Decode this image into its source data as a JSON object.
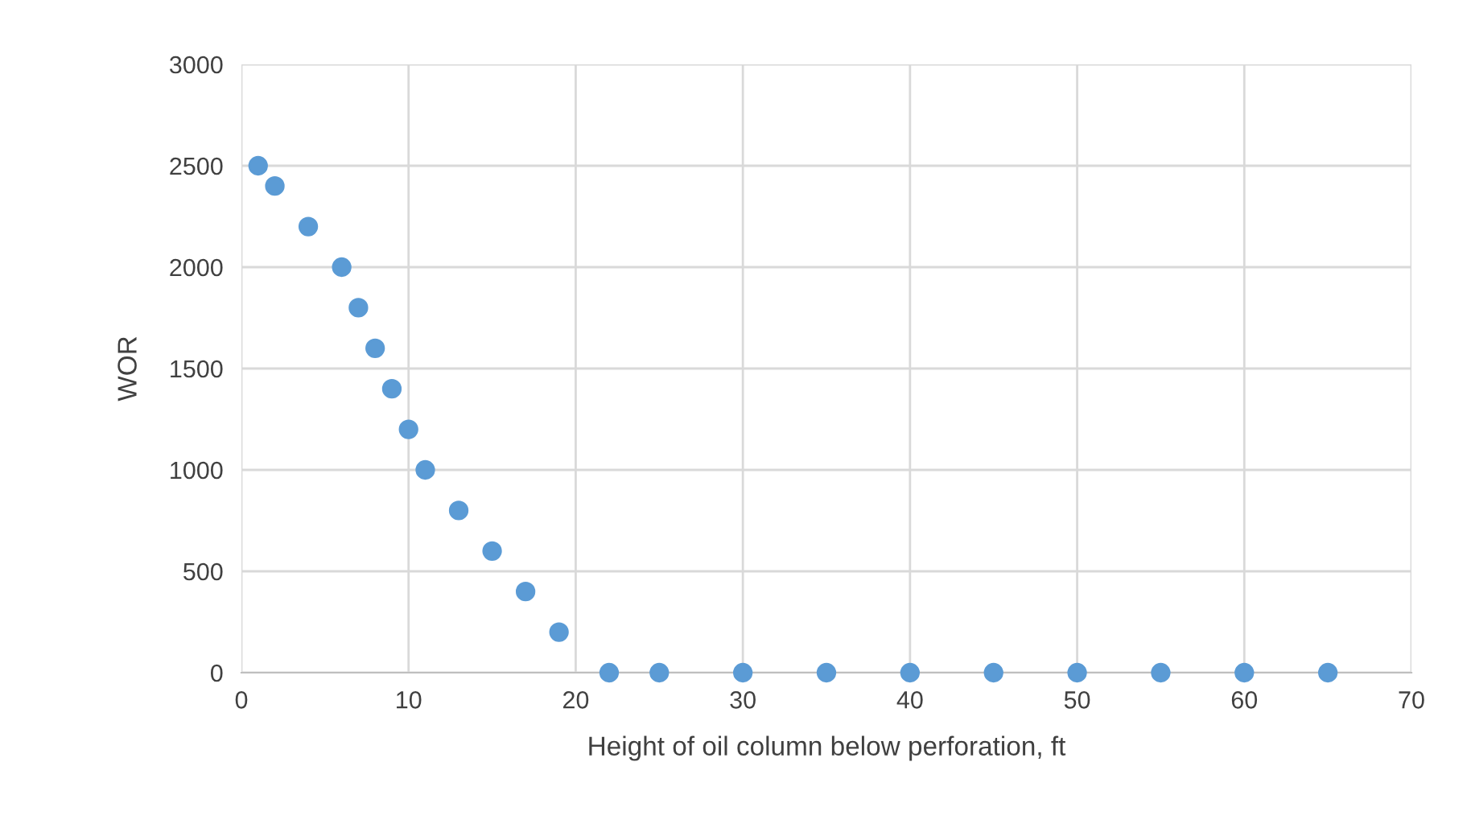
{
  "chart_data": {
    "type": "scatter",
    "xlabel": "Height of oil column below perforation, ft",
    "ylabel": "WOR",
    "series": [
      {
        "color": "#5b9bd5",
        "x": [
          1,
          2,
          4,
          6,
          7,
          8,
          9,
          10,
          11,
          13,
          15,
          17,
          19,
          22,
          25,
          30,
          35,
          40,
          45,
          50,
          55,
          60,
          65
        ],
        "values": [
          2500,
          2400,
          2200,
          2000,
          1800,
          1600,
          1400,
          1200,
          1000,
          800,
          600,
          400,
          200,
          0,
          0,
          0,
          0,
          0,
          0,
          0,
          0,
          0,
          0
        ]
      }
    ],
    "xlim": [
      0,
      70
    ],
    "xticks": [
      0,
      10,
      20,
      30,
      40,
      50,
      60,
      70
    ],
    "ylim": [
      0,
      3000
    ],
    "yticks": [
      0,
      500,
      1000,
      1500,
      2000,
      2500,
      3000
    ],
    "grid": true,
    "marker": "circle"
  }
}
